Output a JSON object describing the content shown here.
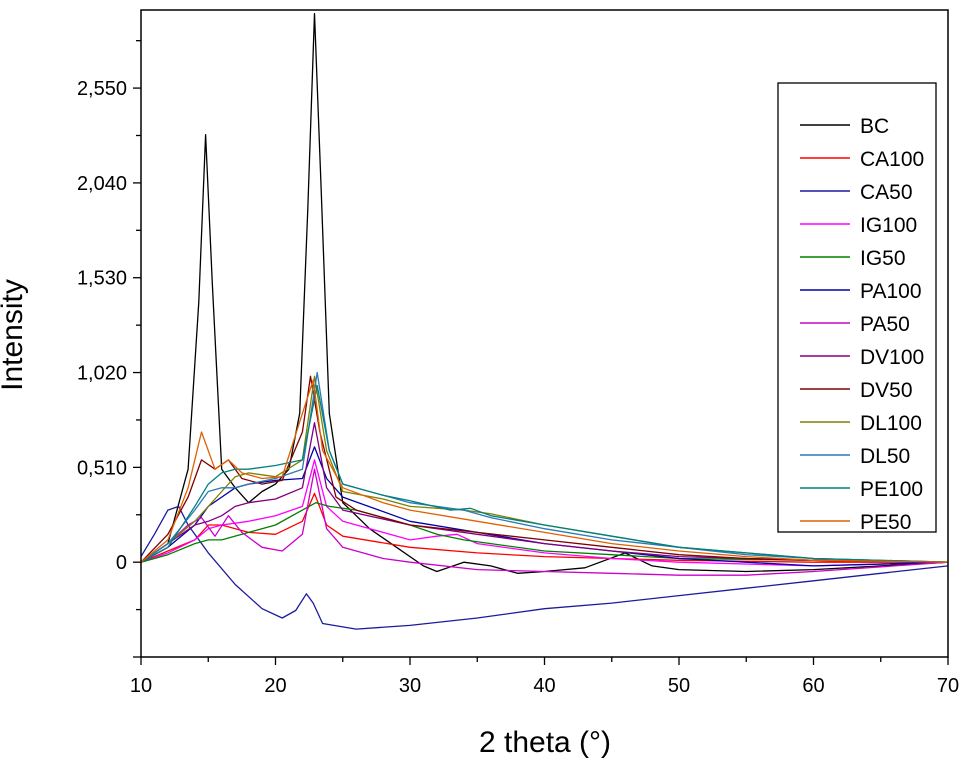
{
  "chart_data": {
    "type": "line",
    "title": "",
    "xlabel": "2 theta (°)",
    "ylabel": "Intensity",
    "xlim": [
      10,
      70
    ],
    "ylim": [
      -0.51,
      2.97
    ],
    "x_ticks": [
      10,
      20,
      30,
      40,
      50,
      60,
      70
    ],
    "x_tick_labels": [
      "10",
      "20",
      "30",
      "40",
      "50",
      "60",
      "70"
    ],
    "y_ticks": [
      0,
      0.51,
      1.02,
      1.53,
      2.04,
      2.55
    ],
    "y_tick_labels": [
      "0",
      "0,510",
      "1,020",
      "1,530",
      "2,040",
      "2,550"
    ],
    "grid": false,
    "legend_position": "top-right",
    "series": [
      {
        "name": "BC",
        "color": "#000000",
        "points": [
          [
            10,
            0
          ],
          [
            12,
            0.1
          ],
          [
            13.5,
            0.5
          ],
          [
            14.3,
            1.4
          ],
          [
            14.8,
            2.3
          ],
          [
            15.3,
            1.5
          ],
          [
            16,
            0.5
          ],
          [
            17,
            0.4
          ],
          [
            18,
            0.32
          ],
          [
            19,
            0.38
          ],
          [
            20,
            0.42
          ],
          [
            21,
            0.5
          ],
          [
            21.8,
            0.8
          ],
          [
            22.4,
            1.9
          ],
          [
            22.9,
            2.95
          ],
          [
            23.4,
            2.0
          ],
          [
            24,
            0.8
          ],
          [
            25,
            0.32
          ],
          [
            27,
            0.18
          ],
          [
            29,
            0.08
          ],
          [
            31,
            -0.02
          ],
          [
            32,
            -0.05
          ],
          [
            34,
            0
          ],
          [
            36,
            -0.02
          ],
          [
            38,
            -0.06
          ],
          [
            40,
            -0.05
          ],
          [
            43,
            -0.03
          ],
          [
            46,
            0.05
          ],
          [
            48,
            -0.02
          ],
          [
            50,
            -0.04
          ],
          [
            55,
            -0.05
          ],
          [
            60,
            -0.04
          ],
          [
            65,
            -0.02
          ],
          [
            70,
            0
          ]
        ]
      },
      {
        "name": "CA100",
        "color": "#ff0000",
        "points": [
          [
            10,
            0
          ],
          [
            12,
            0.06
          ],
          [
            14,
            0.12
          ],
          [
            15,
            0.2
          ],
          [
            16,
            0.2
          ],
          [
            18,
            0.16
          ],
          [
            20,
            0.15
          ],
          [
            22,
            0.22
          ],
          [
            22.9,
            0.37
          ],
          [
            23.8,
            0.2
          ],
          [
            25,
            0.14
          ],
          [
            30,
            0.08
          ],
          [
            35,
            0.05
          ],
          [
            40,
            0.03
          ],
          [
            45,
            0.02
          ],
          [
            50,
            0.01
          ],
          [
            60,
            0
          ],
          [
            70,
            0
          ]
        ]
      },
      {
        "name": "CA50",
        "color": "#1b1b9e",
        "points": [
          [
            10,
            0.03
          ],
          [
            11,
            0.15
          ],
          [
            12,
            0.28
          ],
          [
            12.8,
            0.3
          ],
          [
            13.5,
            0.2
          ],
          [
            15,
            0.05
          ],
          [
            17,
            -0.12
          ],
          [
            19,
            -0.25
          ],
          [
            20.5,
            -0.3
          ],
          [
            21.5,
            -0.26
          ],
          [
            22.3,
            -0.17
          ],
          [
            22.8,
            -0.22
          ],
          [
            23.5,
            -0.33
          ],
          [
            26,
            -0.36
          ],
          [
            30,
            -0.34
          ],
          [
            35,
            -0.3
          ],
          [
            40,
            -0.25
          ],
          [
            45,
            -0.22
          ],
          [
            50,
            -0.18
          ],
          [
            55,
            -0.14
          ],
          [
            60,
            -0.1
          ],
          [
            65,
            -0.06
          ],
          [
            70,
            -0.02
          ]
        ]
      },
      {
        "name": "IG100",
        "color": "#ff00ff",
        "points": [
          [
            10,
            0
          ],
          [
            12,
            0.05
          ],
          [
            14,
            0.12
          ],
          [
            15,
            0.18
          ],
          [
            16,
            0.2
          ],
          [
            18,
            0.22
          ],
          [
            20,
            0.25
          ],
          [
            22,
            0.3
          ],
          [
            22.9,
            0.55
          ],
          [
            23.8,
            0.3
          ],
          [
            25,
            0.22
          ],
          [
            28,
            0.16
          ],
          [
            30,
            0.12
          ],
          [
            32,
            0.14
          ],
          [
            33.5,
            0.15
          ],
          [
            35,
            0.1
          ],
          [
            40,
            0.05
          ],
          [
            45,
            0.02
          ],
          [
            50,
            0
          ],
          [
            60,
            -0.02
          ],
          [
            70,
            0
          ]
        ]
      },
      {
        "name": "IG50",
        "color": "#008000",
        "points": [
          [
            10,
            0
          ],
          [
            12,
            0.04
          ],
          [
            14,
            0.1
          ],
          [
            15,
            0.12
          ],
          [
            16,
            0.12
          ],
          [
            18,
            0.16
          ],
          [
            20,
            0.2
          ],
          [
            22,
            0.28
          ],
          [
            23,
            0.32
          ],
          [
            24,
            0.3
          ],
          [
            26,
            0.28
          ],
          [
            28,
            0.24
          ],
          [
            30,
            0.2
          ],
          [
            32,
            0.15
          ],
          [
            34,
            0.12
          ],
          [
            36,
            0.1
          ],
          [
            40,
            0.06
          ],
          [
            45,
            0.04
          ],
          [
            50,
            0.02
          ],
          [
            60,
            0.01
          ],
          [
            70,
            0
          ]
        ]
      },
      {
        "name": "PA100",
        "color": "#0000aa",
        "points": [
          [
            10,
            0
          ],
          [
            12,
            0.08
          ],
          [
            14,
            0.2
          ],
          [
            15,
            0.3
          ],
          [
            16,
            0.35
          ],
          [
            17,
            0.4
          ],
          [
            18,
            0.42
          ],
          [
            20,
            0.44
          ],
          [
            22,
            0.45
          ],
          [
            22.9,
            0.62
          ],
          [
            23.8,
            0.45
          ],
          [
            25,
            0.35
          ],
          [
            30,
            0.22
          ],
          [
            35,
            0.16
          ],
          [
            40,
            0.1
          ],
          [
            45,
            0.06
          ],
          [
            50,
            0.02
          ],
          [
            55,
            0
          ],
          [
            60,
            -0.02
          ],
          [
            70,
            0
          ]
        ]
      },
      {
        "name": "PA50",
        "color": "#cc00cc",
        "points": [
          [
            10,
            0
          ],
          [
            12,
            0.1
          ],
          [
            13.5,
            0.2
          ],
          [
            14.5,
            0.24
          ],
          [
            15.5,
            0.14
          ],
          [
            16.5,
            0.25
          ],
          [
            17.5,
            0.16
          ],
          [
            19,
            0.08
          ],
          [
            20.5,
            0.06
          ],
          [
            22,
            0.15
          ],
          [
            22.9,
            0.5
          ],
          [
            23.8,
            0.18
          ],
          [
            25,
            0.08
          ],
          [
            28,
            0.02
          ],
          [
            30,
            0
          ],
          [
            35,
            -0.04
          ],
          [
            40,
            -0.05
          ],
          [
            45,
            -0.06
          ],
          [
            50,
            -0.07
          ],
          [
            55,
            -0.07
          ],
          [
            60,
            -0.05
          ],
          [
            70,
            0
          ]
        ]
      },
      {
        "name": "DV100",
        "color": "#800080",
        "points": [
          [
            10,
            0
          ],
          [
            12,
            0.1
          ],
          [
            14,
            0.2
          ],
          [
            15,
            0.22
          ],
          [
            16,
            0.25
          ],
          [
            17,
            0.3
          ],
          [
            18,
            0.32
          ],
          [
            20,
            0.34
          ],
          [
            22,
            0.4
          ],
          [
            22.9,
            0.75
          ],
          [
            23.8,
            0.4
          ],
          [
            25,
            0.28
          ],
          [
            30,
            0.2
          ],
          [
            35,
            0.15
          ],
          [
            40,
            0.1
          ],
          [
            45,
            0.06
          ],
          [
            50,
            0.03
          ],
          [
            55,
            0.02
          ],
          [
            60,
            0.01
          ],
          [
            70,
            0
          ]
        ]
      },
      {
        "name": "DV50",
        "color": "#800000",
        "points": [
          [
            10,
            0
          ],
          [
            12,
            0.15
          ],
          [
            13.5,
            0.35
          ],
          [
            14.5,
            0.55
          ],
          [
            15.5,
            0.5
          ],
          [
            16.5,
            0.55
          ],
          [
            17.5,
            0.45
          ],
          [
            19,
            0.42
          ],
          [
            20.5,
            0.44
          ],
          [
            22,
            0.7
          ],
          [
            22.6,
            1.0
          ],
          [
            23.3,
            0.7
          ],
          [
            24.5,
            0.35
          ],
          [
            26,
            0.28
          ],
          [
            30,
            0.2
          ],
          [
            35,
            0.16
          ],
          [
            40,
            0.12
          ],
          [
            45,
            0.08
          ],
          [
            50,
            0.04
          ],
          [
            55,
            0.02
          ],
          [
            60,
            0.01
          ],
          [
            70,
            0
          ]
        ]
      },
      {
        "name": "DL100",
        "color": "#808000",
        "points": [
          [
            10,
            0
          ],
          [
            12,
            0.1
          ],
          [
            14,
            0.22
          ],
          [
            15,
            0.3
          ],
          [
            16,
            0.38
          ],
          [
            17,
            0.46
          ],
          [
            18,
            0.48
          ],
          [
            20,
            0.46
          ],
          [
            22,
            0.55
          ],
          [
            22.9,
            1.0
          ],
          [
            23.8,
            0.6
          ],
          [
            25,
            0.38
          ],
          [
            28,
            0.34
          ],
          [
            30,
            0.3
          ],
          [
            34,
            0.28
          ],
          [
            36,
            0.26
          ],
          [
            40,
            0.2
          ],
          [
            45,
            0.14
          ],
          [
            50,
            0.08
          ],
          [
            55,
            0.05
          ],
          [
            60,
            0.02
          ],
          [
            70,
            0
          ]
        ]
      },
      {
        "name": "DL50",
        "color": "#2a7ab8",
        "points": [
          [
            10,
            0
          ],
          [
            12,
            0.1
          ],
          [
            14,
            0.28
          ],
          [
            15,
            0.38
          ],
          [
            16,
            0.4
          ],
          [
            17,
            0.4
          ],
          [
            18,
            0.42
          ],
          [
            20,
            0.45
          ],
          [
            22,
            0.5
          ],
          [
            23.1,
            1.02
          ],
          [
            24,
            0.6
          ],
          [
            25,
            0.42
          ],
          [
            28,
            0.36
          ],
          [
            30,
            0.32
          ],
          [
            34,
            0.28
          ],
          [
            36,
            0.24
          ],
          [
            40,
            0.18
          ],
          [
            45,
            0.12
          ],
          [
            50,
            0.08
          ],
          [
            55,
            0.04
          ],
          [
            60,
            0.02
          ],
          [
            70,
            0
          ]
        ]
      },
      {
        "name": "PE100",
        "color": "#008080",
        "points": [
          [
            10,
            0
          ],
          [
            12,
            0.08
          ],
          [
            14,
            0.3
          ],
          [
            15,
            0.42
          ],
          [
            16,
            0.48
          ],
          [
            17,
            0.5
          ],
          [
            18,
            0.5
          ],
          [
            20,
            0.52
          ],
          [
            22,
            0.55
          ],
          [
            23.1,
            0.95
          ],
          [
            24,
            0.6
          ],
          [
            25,
            0.42
          ],
          [
            28,
            0.36
          ],
          [
            30,
            0.33
          ],
          [
            33,
            0.28
          ],
          [
            34.5,
            0.29
          ],
          [
            36,
            0.25
          ],
          [
            40,
            0.2
          ],
          [
            45,
            0.14
          ],
          [
            50,
            0.08
          ],
          [
            55,
            0.05
          ],
          [
            60,
            0.02
          ],
          [
            70,
            0
          ]
        ]
      },
      {
        "name": "PE50",
        "color": "#e06000",
        "points": [
          [
            10,
            0
          ],
          [
            12,
            0.12
          ],
          [
            13.5,
            0.4
          ],
          [
            14.5,
            0.7
          ],
          [
            15.5,
            0.5
          ],
          [
            16.5,
            0.55
          ],
          [
            17.5,
            0.48
          ],
          [
            19,
            0.45
          ],
          [
            20.5,
            0.46
          ],
          [
            22,
            0.8
          ],
          [
            22.8,
            0.98
          ],
          [
            23.5,
            0.6
          ],
          [
            25,
            0.4
          ],
          [
            28,
            0.32
          ],
          [
            30,
            0.28
          ],
          [
            35,
            0.22
          ],
          [
            40,
            0.16
          ],
          [
            45,
            0.1
          ],
          [
            50,
            0.06
          ],
          [
            55,
            0.03
          ],
          [
            60,
            0.01
          ],
          [
            70,
            0
          ]
        ]
      }
    ]
  }
}
